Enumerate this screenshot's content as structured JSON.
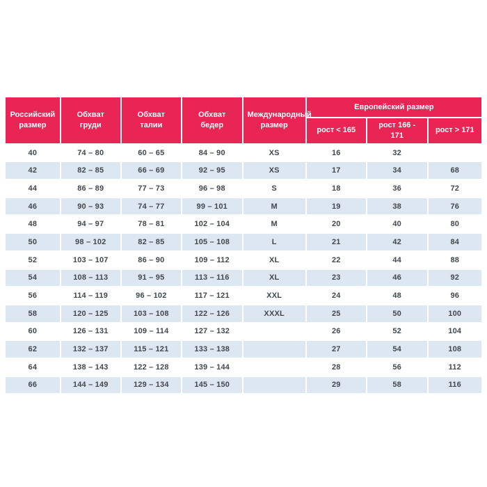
{
  "table": {
    "header": {
      "russian_size": "Российский размер",
      "chest": "Обхват груди",
      "waist": "Обхват талии",
      "hips": "Обхват бедер",
      "international_size": "Международный размер",
      "european_size": "Европейский размер",
      "height_lt_165": "рост < 165",
      "height_166_171": "рост 166 - 171",
      "height_gt_171": "рост > 171"
    },
    "colors": {
      "header_bg": "#e92556",
      "row_alt_bg": "#dde7f1",
      "row_bg": "#ffffff",
      "cell_text": "#42474e",
      "header_text": "#ffffff"
    },
    "rows": [
      [
        "40",
        "74 – 80",
        "60 – 65",
        "84 – 90",
        "XS",
        "16",
        "32",
        ""
      ],
      [
        "42",
        "82 – 85",
        "66 – 69",
        "92 – 95",
        "XS",
        "17",
        "34",
        "68"
      ],
      [
        "44",
        "86 – 89",
        "77 – 73",
        "96 – 98",
        "S",
        "18",
        "36",
        "72"
      ],
      [
        "46",
        "90 – 93",
        "74 – 77",
        "99 – 101",
        "M",
        "19",
        "38",
        "76"
      ],
      [
        "48",
        "94 – 97",
        "78 – 81",
        "102 – 104",
        "M",
        "20",
        "40",
        "80"
      ],
      [
        "50",
        "98 – 102",
        "82 – 85",
        "105 – 108",
        "L",
        "21",
        "42",
        "84"
      ],
      [
        "52",
        "103 – 107",
        "86 – 90",
        "109 – 112",
        "XL",
        "22",
        "44",
        "88"
      ],
      [
        "54",
        "108 – 113",
        "91 – 95",
        "113 – 116",
        "XL",
        "23",
        "46",
        "92"
      ],
      [
        "56",
        "114 – 119",
        "96 – 102",
        "117 – 121",
        "XXL",
        "24",
        "48",
        "96"
      ],
      [
        "58",
        "120 – 125",
        "103 – 108",
        "122 – 126",
        "XXXL",
        "25",
        "50",
        "100"
      ],
      [
        "60",
        "126 – 131",
        "109 – 114",
        "127 – 132",
        "",
        "26",
        "52",
        "104"
      ],
      [
        "62",
        "132 – 137",
        "115 – 121",
        "133 – 138",
        "",
        "27",
        "54",
        "108"
      ],
      [
        "64",
        "138 – 143",
        "122 – 128",
        "139 – 144",
        "",
        "28",
        "56",
        "112"
      ],
      [
        "66",
        "144 – 149",
        "129 – 134",
        "145 – 150",
        "",
        "29",
        "58",
        "116"
      ]
    ]
  },
  "chart_data": {
    "type": "table",
    "title": "",
    "columns": [
      "Российский размер",
      "Обхват груди",
      "Обхват талии",
      "Обхват бедер",
      "Международный размер",
      "Европейский размер / рост < 165",
      "Европейский размер / рост 166 - 171",
      "Европейский размер / рост > 171"
    ],
    "rows": [
      [
        "40",
        "74 – 80",
        "60 – 65",
        "84 – 90",
        "XS",
        "16",
        "32",
        ""
      ],
      [
        "42",
        "82 – 85",
        "66 – 69",
        "92 – 95",
        "XS",
        "17",
        "34",
        "68"
      ],
      [
        "44",
        "86 – 89",
        "77 – 73",
        "96 – 98",
        "S",
        "18",
        "36",
        "72"
      ],
      [
        "46",
        "90 – 93",
        "74 – 77",
        "99 – 101",
        "M",
        "19",
        "38",
        "76"
      ],
      [
        "48",
        "94 – 97",
        "78 – 81",
        "102 – 104",
        "M",
        "20",
        "40",
        "80"
      ],
      [
        "50",
        "98 – 102",
        "82 – 85",
        "105 – 108",
        "L",
        "21",
        "42",
        "84"
      ],
      [
        "52",
        "103 – 107",
        "86 – 90",
        "109 – 112",
        "XL",
        "22",
        "44",
        "88"
      ],
      [
        "54",
        "108 – 113",
        "91 – 95",
        "113 – 116",
        "XL",
        "23",
        "46",
        "92"
      ],
      [
        "56",
        "114 – 119",
        "96 – 102",
        "117 – 121",
        "XXL",
        "24",
        "48",
        "96"
      ],
      [
        "58",
        "120 – 125",
        "103 – 108",
        "122 – 126",
        "XXXL",
        "25",
        "50",
        "100"
      ],
      [
        "60",
        "126 – 131",
        "109 – 114",
        "127 – 132",
        "",
        "26",
        "52",
        "104"
      ],
      [
        "62",
        "132 – 137",
        "115 – 121",
        "133 – 138",
        "",
        "27",
        "54",
        "108"
      ],
      [
        "64",
        "138 – 143",
        "122 – 128",
        "139 – 144",
        "",
        "28",
        "56",
        "112"
      ],
      [
        "66",
        "144 – 149",
        "129 – 134",
        "145 – 150",
        "",
        "29",
        "58",
        "116"
      ]
    ]
  }
}
